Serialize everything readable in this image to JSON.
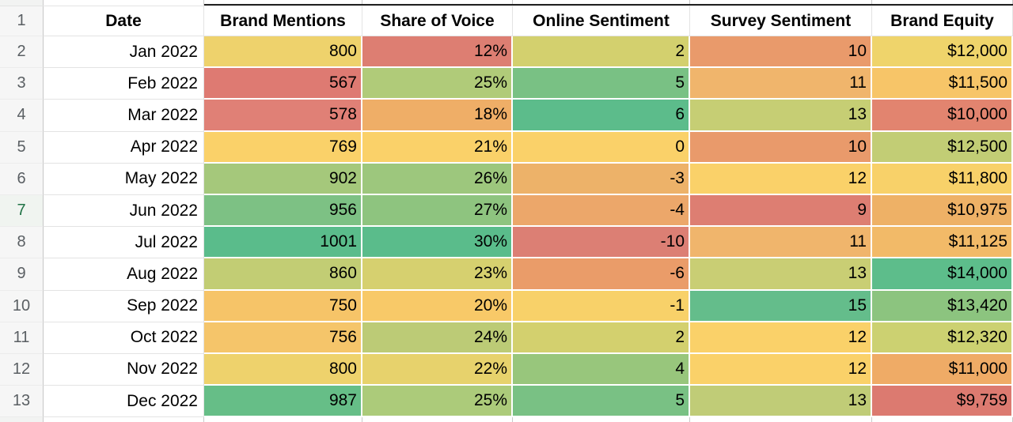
{
  "sheet": {
    "columns": {
      "row_header_width": 55,
      "widths": [
        203,
        200,
        190,
        224,
        230,
        178
      ],
      "headers": [
        "Date",
        "Brand Mentions",
        "Share of Voice",
        "Online Sentiment",
        "Survey Sentiment",
        "Brand Equity"
      ]
    },
    "header_row_number": "1",
    "rows": [
      {
        "n": "2",
        "date": "Jan 2022",
        "values": [
          {
            "v": "800",
            "bg": "#eed26c"
          },
          {
            "v": "12%",
            "bg": "#dd7e72"
          },
          {
            "v": "2",
            "bg": "#d3d06e"
          },
          {
            "v": "10",
            "bg": "#e99a6b"
          },
          {
            "v": "$12,000",
            "bg": "#efd46b"
          }
        ]
      },
      {
        "n": "3",
        "date": "Feb 2022",
        "values": [
          {
            "v": "567",
            "bg": "#de7a72"
          },
          {
            "v": "25%",
            "bg": "#b0cb79"
          },
          {
            "v": "5",
            "bg": "#79c184"
          },
          {
            "v": "11",
            "bg": "#f0b56c"
          },
          {
            "v": "$11,500",
            "bg": "#f7c568"
          }
        ]
      },
      {
        "n": "4",
        "date": "Mar 2022",
        "values": [
          {
            "v": "578",
            "bg": "#e08076"
          },
          {
            "v": "18%",
            "bg": "#efae67"
          },
          {
            "v": "6",
            "bg": "#5cbc8b"
          },
          {
            "v": "13",
            "bg": "#c6ce74"
          },
          {
            "v": "$10,000",
            "bg": "#e2846f"
          }
        ]
      },
      {
        "n": "5",
        "date": "Apr 2022",
        "values": [
          {
            "v": "769",
            "bg": "#fad169"
          },
          {
            "v": "21%",
            "bg": "#fad169"
          },
          {
            "v": "0",
            "bg": "#fad169"
          },
          {
            "v": "10",
            "bg": "#e99a6b"
          },
          {
            "v": "$12,500",
            "bg": "#c2cd75"
          }
        ]
      },
      {
        "n": "6",
        "date": "May 2022",
        "values": [
          {
            "v": "902",
            "bg": "#a5c87b"
          },
          {
            "v": "26%",
            "bg": "#9dc77d"
          },
          {
            "v": "-3",
            "bg": "#edb269"
          },
          {
            "v": "12",
            "bg": "#fad169"
          },
          {
            "v": "$11,800",
            "bg": "#f8d169"
          }
        ]
      },
      {
        "n": "7",
        "date": "Jun 2022",
        "values": [
          {
            "v": "956",
            "bg": "#7dc184"
          },
          {
            "v": "27%",
            "bg": "#8ec47f"
          },
          {
            "v": "-4",
            "bg": "#eca76a"
          },
          {
            "v": "9",
            "bg": "#dd7e72"
          },
          {
            "v": "$10,975",
            "bg": "#eeb166"
          }
        ]
      },
      {
        "n": "8",
        "date": "Jul 2022",
        "values": [
          {
            "v": "1001",
            "bg": "#5abc8b"
          },
          {
            "v": "30%",
            "bg": "#5abc8b"
          },
          {
            "v": "-10",
            "bg": "#dc7f74"
          },
          {
            "v": "11",
            "bg": "#f0b56c"
          },
          {
            "v": "$11,125",
            "bg": "#f2ba68"
          }
        ]
      },
      {
        "n": "9",
        "date": "Aug 2022",
        "values": [
          {
            "v": "860",
            "bg": "#c2cd74"
          },
          {
            "v": "23%",
            "bg": "#d6d06f"
          },
          {
            "v": "-6",
            "bg": "#ea9c69"
          },
          {
            "v": "13",
            "bg": "#c9ce74"
          },
          {
            "v": "$14,000",
            "bg": "#5dbd8b"
          }
        ]
      },
      {
        "n": "10",
        "date": "Sep 2022",
        "values": [
          {
            "v": "750",
            "bg": "#f6c468"
          },
          {
            "v": "20%",
            "bg": "#f8c968"
          },
          {
            "v": "-1",
            "bg": "#f8d169"
          },
          {
            "v": "15",
            "bg": "#64bd8b"
          },
          {
            "v": "$13,420",
            "bg": "#8cc47f"
          }
        ]
      },
      {
        "n": "11",
        "date": "Oct 2022",
        "values": [
          {
            "v": "756",
            "bg": "#f5c56a"
          },
          {
            "v": "24%",
            "bg": "#bccb76"
          },
          {
            "v": "2",
            "bg": "#d3d06e"
          },
          {
            "v": "12",
            "bg": "#fad169"
          },
          {
            "v": "$12,320",
            "bg": "#ccd171"
          }
        ]
      },
      {
        "n": "12",
        "date": "Nov 2022",
        "values": [
          {
            "v": "800",
            "bg": "#eed26c"
          },
          {
            "v": "22%",
            "bg": "#e7d26c"
          },
          {
            "v": "4",
            "bg": "#98c67c"
          },
          {
            "v": "12",
            "bg": "#fad169"
          },
          {
            "v": "$11,000",
            "bg": "#efab66"
          }
        ]
      },
      {
        "n": "13",
        "date": "Dec 2022",
        "values": [
          {
            "v": "987",
            "bg": "#66be87"
          },
          {
            "v": "25%",
            "bg": "#accb7a"
          },
          {
            "v": "5",
            "bg": "#79c184"
          },
          {
            "v": "13",
            "bg": "#c0cc77"
          },
          {
            "v": "$9,759",
            "bg": "#dc7a70"
          }
        ]
      }
    ],
    "selection": {
      "row_number": "7",
      "accent": "#217346"
    },
    "colors": {
      "scale_min_red": "#e67c73",
      "scale_mid_yellow": "#ffd666",
      "scale_max_green": "#57bb8a",
      "row_header_bg": "#f6f6f6",
      "gridline": "#e3e3e3",
      "range_top_border": "#222222"
    }
  }
}
